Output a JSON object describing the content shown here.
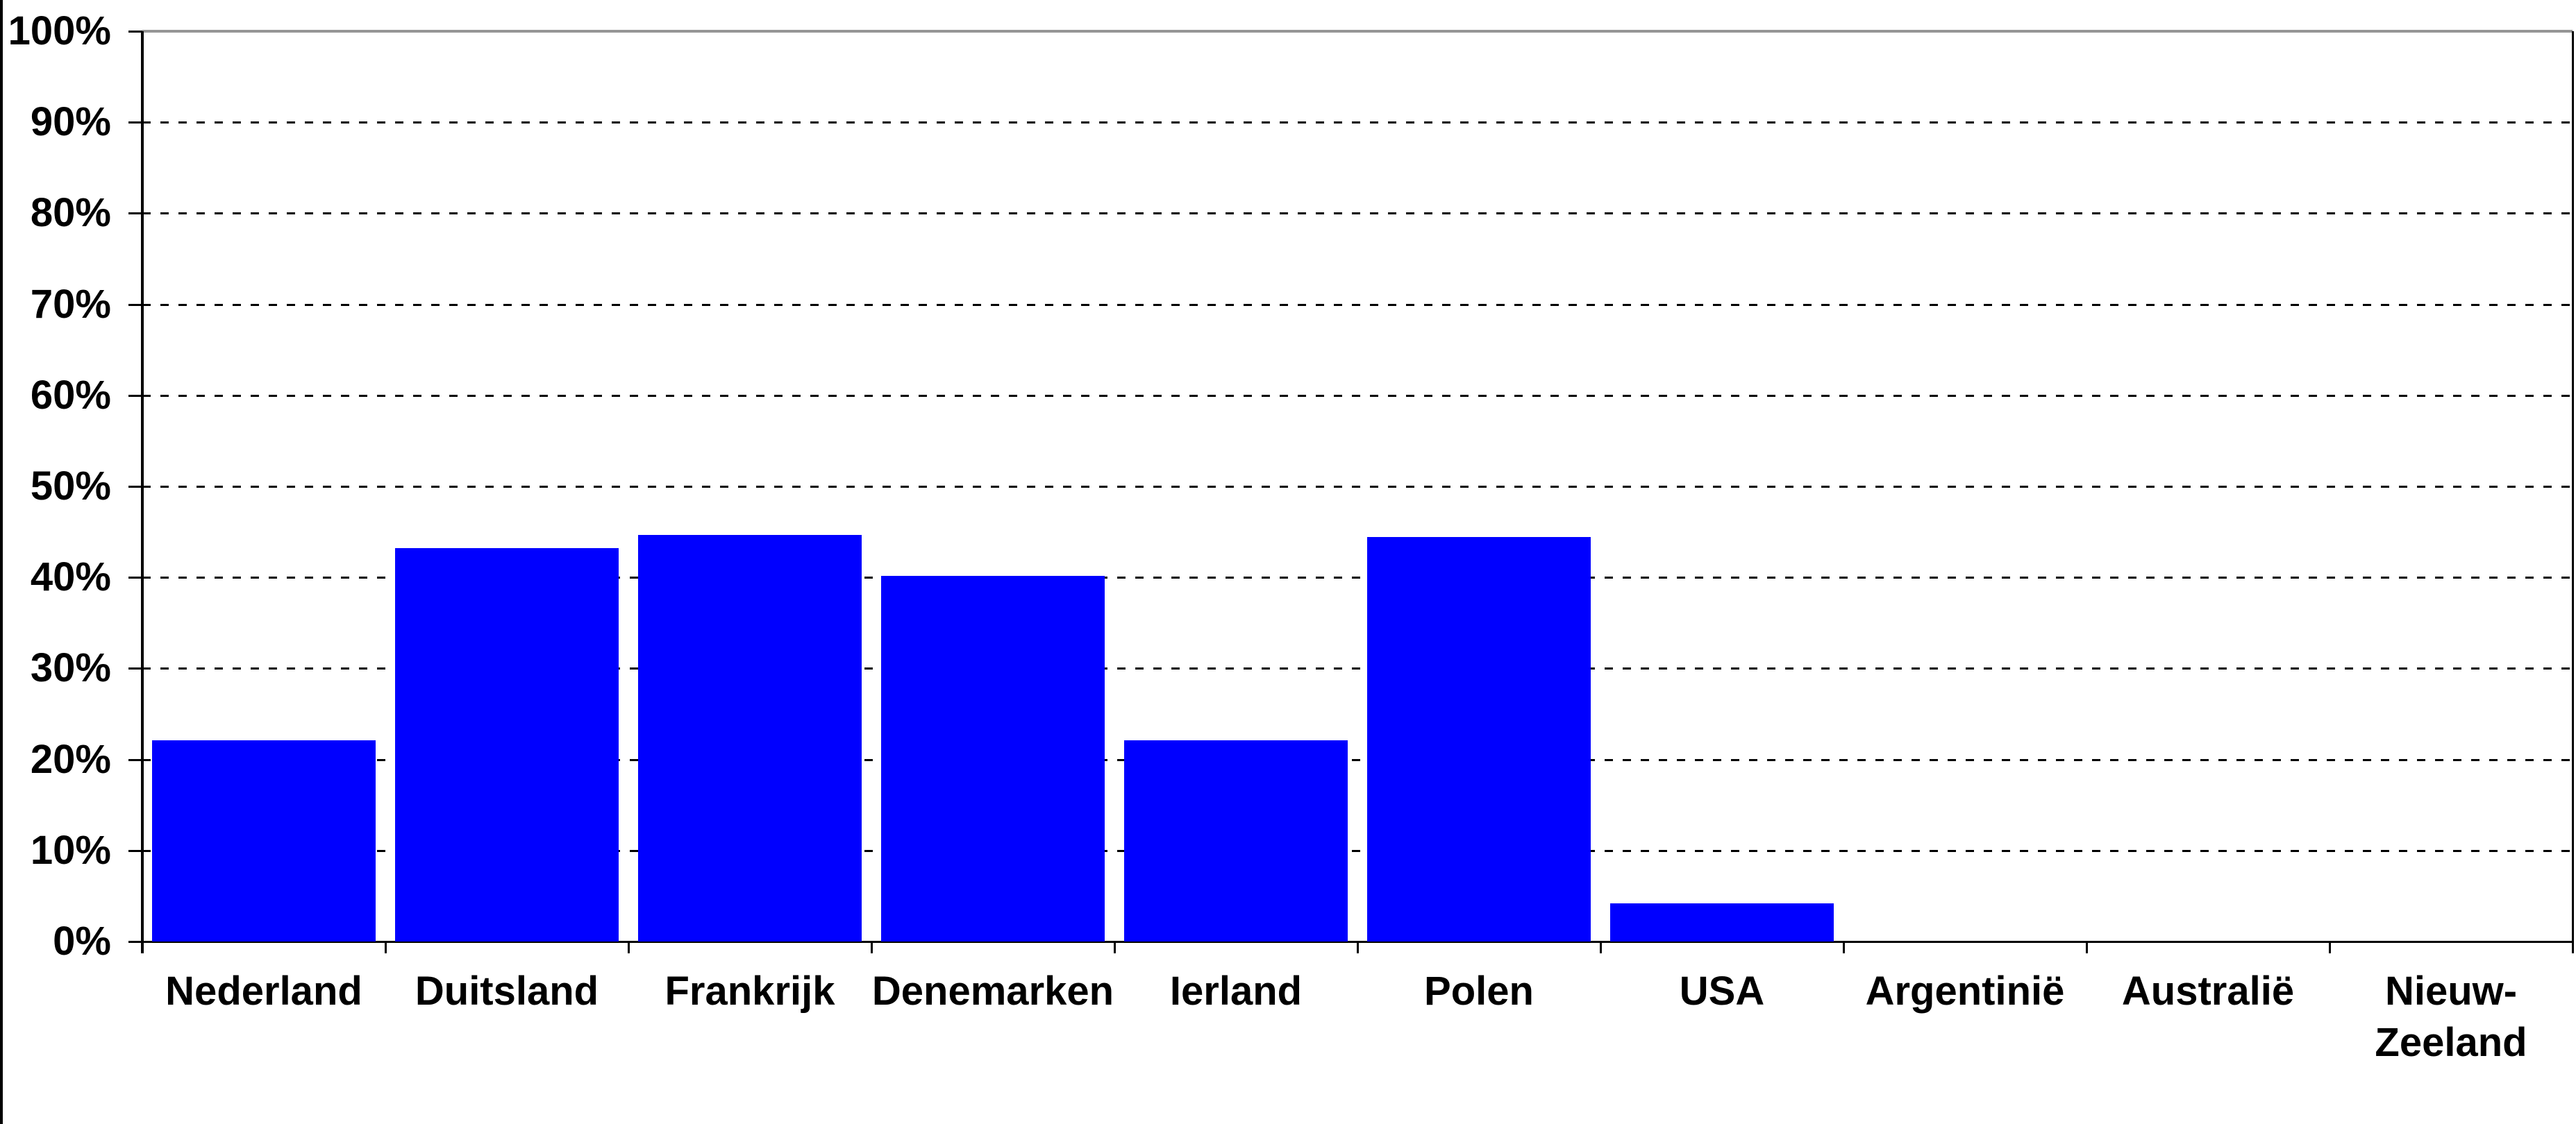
{
  "chart_data": {
    "type": "bar",
    "title": "",
    "xlabel": "",
    "ylabel": "",
    "categories": [
      "Nederland",
      "Duitsland",
      "Frankrijk",
      "Denemarken",
      "Ierland",
      "Polen",
      "USA",
      "Argentinië",
      "Australië",
      "Nieuw-\nZeeland"
    ],
    "values": [
      22.1,
      43.2,
      44.7,
      40.2,
      22.1,
      44.4,
      4.2,
      0,
      0,
      0
    ],
    "ylim": [
      0,
      100
    ],
    "ytick_step": 10,
    "ytick_labels": [
      "0%",
      "10%",
      "20%",
      "30%",
      "40%",
      "50%",
      "60%",
      "70%",
      "80%",
      "90%",
      "100%"
    ],
    "grid": "horizontal-dashed",
    "legend_position": "none",
    "bar_color": "#0000ff",
    "gridline_color": "#000000",
    "axis_color": "#000000",
    "plot_top_line_color": "#969696",
    "background_color": "#ffffff"
  }
}
